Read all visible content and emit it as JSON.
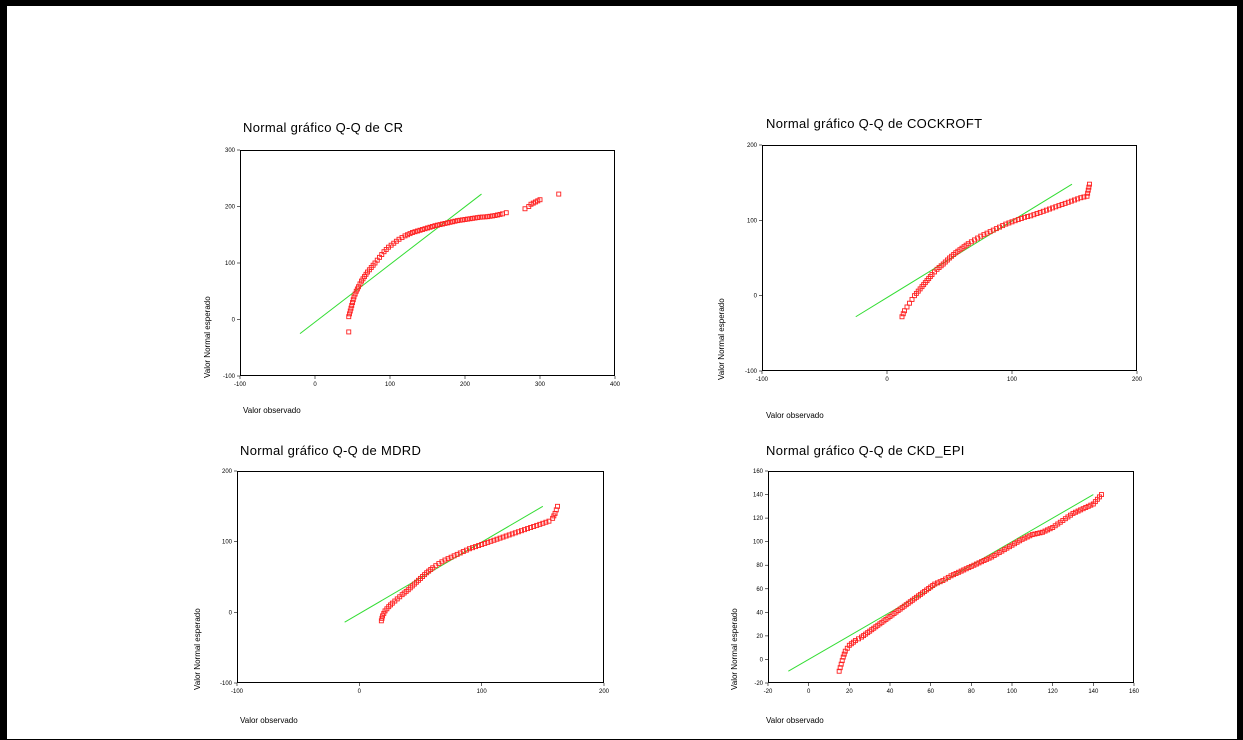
{
  "chart_data": [
    {
      "type": "scatter",
      "title": "Normal gráfico Q-Q de CR",
      "xlabel": "Valor observado",
      "ylabel": "Valor Normal esperado",
      "xlim": [
        -100,
        400
      ],
      "ylim": [
        -100,
        300
      ],
      "xticks": [
        -100,
        0,
        100,
        200,
        300,
        400
      ],
      "yticks": [
        -100,
        0,
        100,
        200,
        300
      ],
      "line": [
        [
          -20,
          -25
        ],
        [
          222,
          222
        ]
      ],
      "points": [
        [
          45,
          -22
        ],
        [
          45,
          5
        ],
        [
          47,
          15
        ],
        [
          50,
          30
        ],
        [
          52,
          40
        ],
        [
          55,
          50
        ],
        [
          58,
          58
        ],
        [
          62,
          68
        ],
        [
          66,
          76
        ],
        [
          70,
          84
        ],
        [
          75,
          92
        ],
        [
          80,
          100
        ],
        [
          86,
          110
        ],
        [
          92,
          120
        ],
        [
          98,
          128
        ],
        [
          105,
          135
        ],
        [
          112,
          142
        ],
        [
          120,
          148
        ],
        [
          130,
          154
        ],
        [
          140,
          158
        ],
        [
          150,
          162
        ],
        [
          160,
          166
        ],
        [
          170,
          169
        ],
        [
          180,
          172
        ],
        [
          190,
          175
        ],
        [
          200,
          177
        ],
        [
          210,
          179
        ],
        [
          220,
          181
        ],
        [
          230,
          182
        ],
        [
          240,
          184
        ],
        [
          250,
          187
        ],
        [
          255,
          189
        ],
        [
          280,
          196
        ],
        [
          285,
          200
        ],
        [
          288,
          204
        ],
        [
          300,
          212
        ],
        [
          325,
          222
        ]
      ]
    },
    {
      "type": "scatter",
      "title": "Normal gráfico Q-Q de COCKROFT",
      "xlabel": "Valor observado",
      "ylabel": "Valor Normal esperado",
      "xlim": [
        -100,
        200
      ],
      "ylim": [
        -100,
        200
      ],
      "xticks": [
        -100,
        0,
        100,
        200
      ],
      "yticks": [
        -100,
        0,
        100,
        200
      ],
      "line": [
        [
          -25,
          -28
        ],
        [
          148,
          148
        ]
      ],
      "points": [
        [
          12,
          -28
        ],
        [
          14,
          -20
        ],
        [
          16,
          -15
        ],
        [
          18,
          -10
        ],
        [
          20,
          -5
        ],
        [
          22,
          0
        ],
        [
          25,
          6
        ],
        [
          28,
          12
        ],
        [
          32,
          20
        ],
        [
          36,
          28
        ],
        [
          40,
          35
        ],
        [
          45,
          42
        ],
        [
          50,
          50
        ],
        [
          55,
          57
        ],
        [
          60,
          63
        ],
        [
          65,
          69
        ],
        [
          70,
          74
        ],
        [
          75,
          79
        ],
        [
          80,
          83
        ],
        [
          85,
          87
        ],
        [
          90,
          91
        ],
        [
          95,
          95
        ],
        [
          100,
          98
        ],
        [
          105,
          101
        ],
        [
          110,
          104
        ],
        [
          115,
          106
        ],
        [
          120,
          109
        ],
        [
          125,
          112
        ],
        [
          130,
          115
        ],
        [
          135,
          118
        ],
        [
          140,
          121
        ],
        [
          145,
          124
        ],
        [
          150,
          127
        ],
        [
          155,
          130
        ],
        [
          160,
          132
        ],
        [
          161,
          140
        ],
        [
          162,
          148
        ]
      ]
    },
    {
      "type": "scatter",
      "title": "Normal gráfico Q-Q de MDRD",
      "xlabel": "Valor observado",
      "ylabel": "Valor Normal esperado",
      "xlim": [
        -100,
        200
      ],
      "ylim": [
        -100,
        200
      ],
      "xticks": [
        -100,
        0,
        100,
        200
      ],
      "yticks": [
        -100,
        0,
        100,
        200
      ],
      "line": [
        [
          -12,
          -14
        ],
        [
          150,
          150
        ]
      ],
      "points": [
        [
          18,
          -12
        ],
        [
          19,
          -5
        ],
        [
          21,
          2
        ],
        [
          24,
          8
        ],
        [
          27,
          13
        ],
        [
          31,
          19
        ],
        [
          35,
          25
        ],
        [
          40,
          32
        ],
        [
          45,
          40
        ],
        [
          50,
          48
        ],
        [
          55,
          56
        ],
        [
          60,
          63
        ],
        [
          65,
          69
        ],
        [
          70,
          74
        ],
        [
          75,
          78
        ],
        [
          80,
          82
        ],
        [
          85,
          86
        ],
        [
          90,
          90
        ],
        [
          95,
          93
        ],
        [
          100,
          96
        ],
        [
          105,
          99
        ],
        [
          110,
          102
        ],
        [
          115,
          105
        ],
        [
          120,
          108
        ],
        [
          125,
          111
        ],
        [
          130,
          114
        ],
        [
          135,
          117
        ],
        [
          140,
          120
        ],
        [
          145,
          123
        ],
        [
          150,
          126
        ],
        [
          155,
          129
        ],
        [
          158,
          133
        ],
        [
          160,
          140
        ],
        [
          162,
          150
        ]
      ]
    },
    {
      "type": "scatter",
      "title": "Normal gráfico Q-Q de CKD_EPI",
      "xlabel": "Valor observado",
      "ylabel": "Valor Normal esperado",
      "xlim": [
        -20,
        160
      ],
      "ylim": [
        -20,
        160
      ],
      "xticks": [
        -20,
        0,
        20,
        40,
        60,
        80,
        100,
        120,
        140,
        160
      ],
      "yticks": [
        -20,
        0,
        20,
        40,
        60,
        80,
        100,
        120,
        140,
        160
      ],
      "line": [
        [
          -10,
          -10
        ],
        [
          140,
          140
        ]
      ],
      "points": [
        [
          15,
          -10
        ],
        [
          16,
          -4
        ],
        [
          17,
          2
        ],
        [
          18,
          7
        ],
        [
          20,
          12
        ],
        [
          23,
          16
        ],
        [
          26,
          19
        ],
        [
          30,
          24
        ],
        [
          34,
          29
        ],
        [
          38,
          34
        ],
        [
          42,
          39
        ],
        [
          46,
          44
        ],
        [
          50,
          49
        ],
        [
          54,
          54
        ],
        [
          58,
          59
        ],
        [
          62,
          64
        ],
        [
          66,
          67
        ],
        [
          70,
          71
        ],
        [
          75,
          75
        ],
        [
          80,
          79
        ],
        [
          85,
          83
        ],
        [
          90,
          87
        ],
        [
          95,
          92
        ],
        [
          100,
          97
        ],
        [
          105,
          102
        ],
        [
          110,
          106
        ],
        [
          115,
          108
        ],
        [
          120,
          112
        ],
        [
          125,
          118
        ],
        [
          130,
          124
        ],
        [
          135,
          128
        ],
        [
          140,
          132
        ],
        [
          142,
          136
        ],
        [
          144,
          140
        ]
      ]
    }
  ]
}
